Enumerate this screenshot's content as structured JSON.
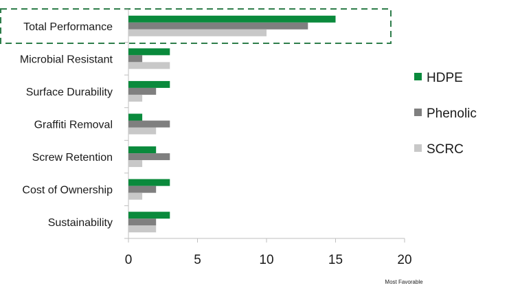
{
  "chart_data": {
    "type": "bar",
    "orientation": "horizontal",
    "categories": [
      "Total Performance",
      "Microbial Resistant",
      "Surface Durability",
      "Graffiti Removal",
      "Screw Retention",
      "Cost of Ownership",
      "Sustainability"
    ],
    "series": [
      {
        "name": "HDPE",
        "color": "#0a8a3c",
        "values": [
          15,
          3,
          3,
          1,
          2,
          3,
          3
        ]
      },
      {
        "name": "Phenolic",
        "color": "#7f7f7f",
        "values": [
          13,
          1,
          2,
          3,
          3,
          2,
          2
        ]
      },
      {
        "name": "SCRC",
        "color": "#c8c8c8",
        "values": [
          10,
          3,
          1,
          2,
          1,
          1,
          2
        ]
      }
    ],
    "xlim": [
      0,
      20
    ],
    "xticks": [
      0,
      5,
      10,
      15,
      20
    ],
    "xlabel": "Most Favorable",
    "ylabel": "",
    "grid": false,
    "legend": "right",
    "highlight_category": "Total Performance",
    "highlight_color": "#2e7d4a"
  }
}
